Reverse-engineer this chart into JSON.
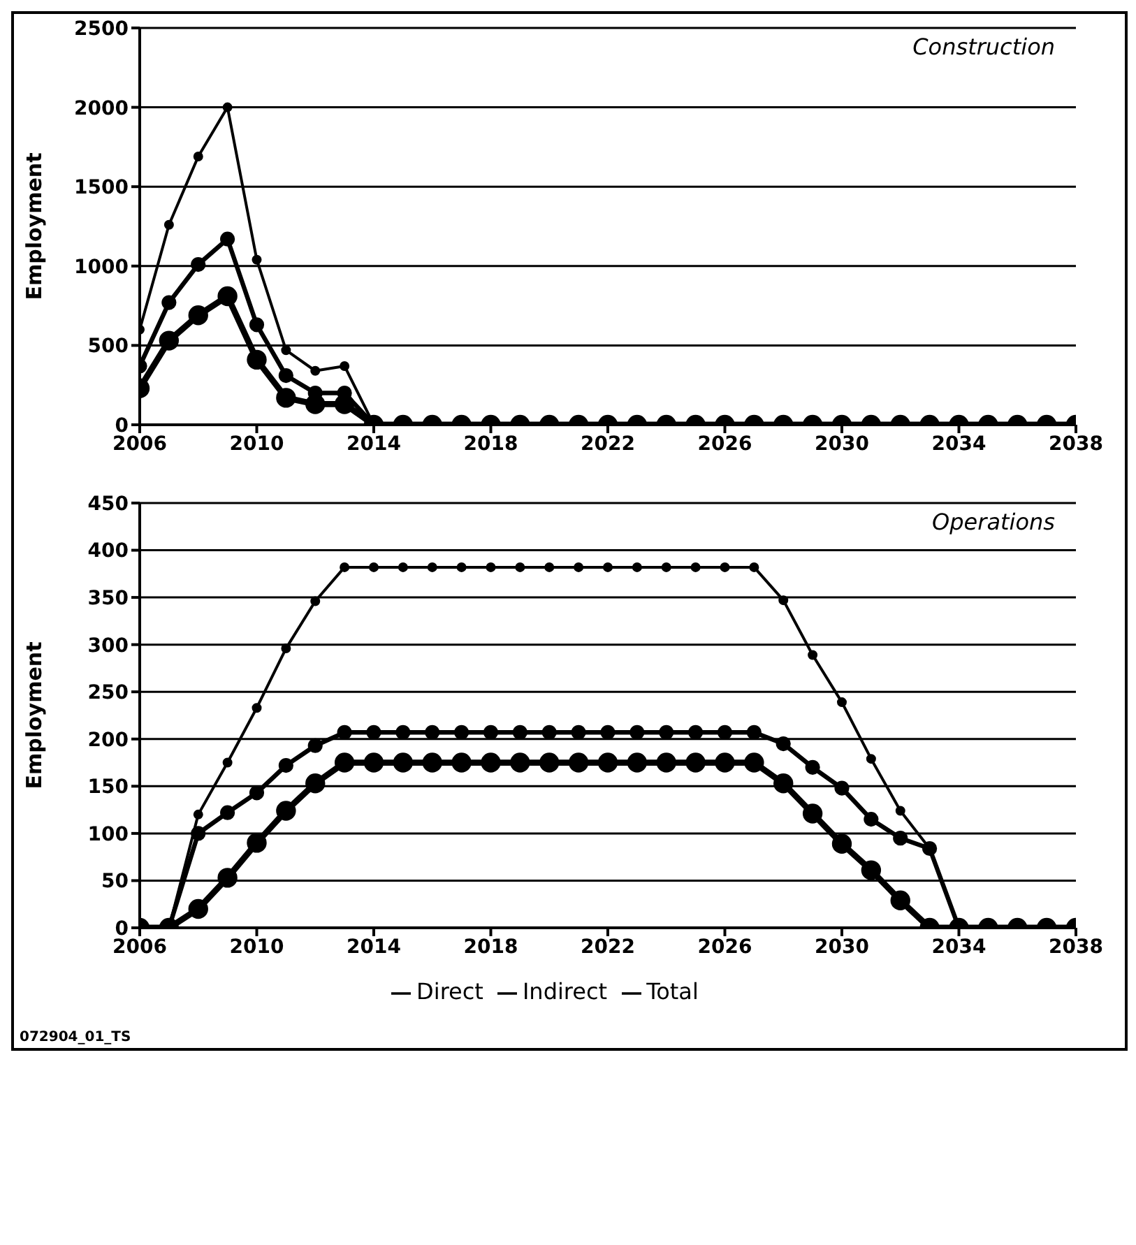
{
  "chart_data": [
    {
      "type": "line",
      "title": "Construction",
      "ylabel": "Employment",
      "x": [
        2006,
        2007,
        2008,
        2009,
        2010,
        2011,
        2012,
        2013,
        2014,
        2015,
        2016,
        2017,
        2018,
        2019,
        2020,
        2021,
        2022,
        2023,
        2024,
        2025,
        2026,
        2027,
        2028,
        2029,
        2030,
        2031,
        2032,
        2033,
        2034,
        2035,
        2036,
        2037,
        2038
      ],
      "xlim": [
        2006,
        2038
      ],
      "xticks": [
        2006,
        2010,
        2014,
        2018,
        2022,
        2026,
        2030,
        2034,
        2038
      ],
      "ylim": [
        0,
        2500
      ],
      "yticks": [
        0,
        500,
        1000,
        1500,
        2000,
        2500
      ],
      "grid": "y",
      "marker": "circle",
      "line_style": "solid",
      "series": [
        {
          "color": "#000000",
          "values": [
            230,
            530,
            690,
            810,
            410,
            170,
            130,
            130,
            0,
            0,
            0,
            0,
            0,
            0,
            0,
            0,
            0,
            0,
            0,
            0,
            0,
            0,
            0,
            0,
            0,
            0,
            0,
            0,
            0,
            0,
            0,
            0,
            0
          ]
        },
        {
          "color": "#000000",
          "values": [
            370,
            770,
            1010,
            1170,
            630,
            310,
            200,
            200,
            0,
            0,
            0,
            0,
            0,
            0,
            0,
            0,
            0,
            0,
            0,
            0,
            0,
            0,
            0,
            0,
            0,
            0,
            0,
            0,
            0,
            0,
            0,
            0,
            0
          ]
        },
        {
          "color": "#000000",
          "values": [
            600,
            1260,
            1690,
            2000,
            1040,
            470,
            340,
            370,
            0,
            0,
            0,
            0,
            0,
            0,
            0,
            0,
            0,
            0,
            0,
            0,
            0,
            0,
            0,
            0,
            0,
            0,
            0,
            0,
            0,
            0,
            0,
            0,
            0
          ]
        }
      ]
    },
    {
      "type": "line",
      "title": "Operations",
      "ylabel": "Employment",
      "x": [
        2006,
        2007,
        2008,
        2009,
        2010,
        2011,
        2012,
        2013,
        2014,
        2015,
        2016,
        2017,
        2018,
        2019,
        2020,
        2021,
        2022,
        2023,
        2024,
        2025,
        2026,
        2027,
        2028,
        2029,
        2030,
        2031,
        2032,
        2033,
        2034,
        2035,
        2036,
        2037,
        2038
      ],
      "xlim": [
        2006,
        2038
      ],
      "xticks": [
        2006,
        2010,
        2014,
        2018,
        2022,
        2026,
        2030,
        2034,
        2038
      ],
      "ylim": [
        0,
        450
      ],
      "yticks": [
        0,
        50,
        100,
        150,
        200,
        250,
        300,
        350,
        400,
        450
      ],
      "grid": "y",
      "marker": "circle",
      "line_style": "solid",
      "legend": "bottom",
      "annotations": [
        "072904_01_TS"
      ],
      "series": [
        {
          "name": "Direct",
          "color": "#000000",
          "values": [
            0,
            0,
            20,
            53,
            90,
            124,
            153,
            175,
            175,
            175,
            175,
            175,
            175,
            175,
            175,
            175,
            175,
            175,
            175,
            175,
            175,
            175,
            153,
            121,
            89,
            61,
            29,
            0,
            0,
            0,
            0,
            0,
            0
          ]
        },
        {
          "name": "Indirect",
          "color": "#000000",
          "values": [
            0,
            0,
            100,
            122,
            143,
            172,
            193,
            207,
            207,
            207,
            207,
            207,
            207,
            207,
            207,
            207,
            207,
            207,
            207,
            207,
            207,
            207,
            195,
            170,
            148,
            115,
            95,
            84,
            0,
            0,
            0,
            0,
            0
          ]
        },
        {
          "name": "Total",
          "color": "#000000",
          "values": [
            0,
            0,
            120,
            175,
            233,
            296,
            346,
            382,
            382,
            382,
            382,
            382,
            382,
            382,
            382,
            382,
            382,
            382,
            382,
            382,
            382,
            382,
            347,
            289,
            239,
            179,
            124,
            84,
            0,
            0,
            0,
            0,
            0
          ]
        }
      ]
    }
  ]
}
